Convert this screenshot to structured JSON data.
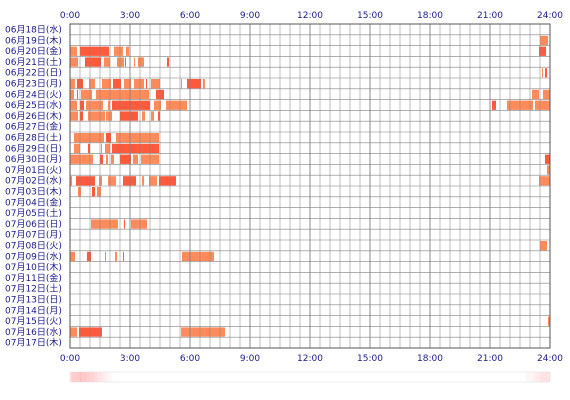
{
  "chart_data": {
    "type": "heatmap",
    "title": "",
    "x_ticks": [
      "0:00",
      "3:00",
      "6:00",
      "9:00",
      "12:00",
      "15:00",
      "18:00",
      "21:00",
      "24:00"
    ],
    "x_range_hours": [
      0,
      24
    ],
    "grid": true,
    "colors": {
      "bar": "#ff8b5a",
      "bar_dark": "#ff5a3c",
      "grid": "#808080",
      "label": "#1a1a8c"
    },
    "rows": [
      {
        "label": "06月18日(水)",
        "segments": []
      },
      {
        "label": "06月19日(木)",
        "segments": [
          [
            23.5,
            23.9
          ]
        ]
      },
      {
        "label": "06月20日(金)",
        "segments": [
          [
            0.0,
            0.35
          ],
          [
            0.5,
            1.95
          ],
          [
            2.2,
            2.65
          ],
          [
            2.8,
            2.95
          ],
          [
            23.45,
            23.8
          ]
        ]
      },
      {
        "label": "06月21日(土)",
        "segments": [
          [
            0.0,
            0.4
          ],
          [
            0.75,
            1.55
          ],
          [
            1.7,
            2.0
          ],
          [
            2.35,
            2.7
          ],
          [
            2.75,
            2.8
          ],
          [
            3.2,
            3.25
          ],
          [
            3.4,
            3.7
          ],
          [
            4.85,
            4.95
          ]
        ]
      },
      {
        "label": "06月22日(日)",
        "segments": [
          [
            23.6,
            23.65
          ],
          [
            23.75,
            23.85
          ]
        ]
      },
      {
        "label": "06月23日(月)",
        "segments": [
          [
            0.0,
            0.25
          ],
          [
            0.35,
            0.65
          ],
          [
            0.95,
            1.25
          ],
          [
            1.6,
            2.05
          ],
          [
            2.15,
            2.55
          ],
          [
            2.7,
            3.05
          ],
          [
            3.2,
            3.7
          ],
          [
            3.8,
            3.85
          ],
          [
            4.05,
            4.5
          ],
          [
            5.55,
            5.6
          ],
          [
            5.85,
            6.55
          ],
          [
            6.65,
            6.75
          ]
        ]
      },
      {
        "label": "06月24日(火)",
        "segments": [
          [
            0.0,
            0.2
          ],
          [
            0.35,
            0.4
          ],
          [
            0.55,
            1.1
          ],
          [
            1.3,
            3.95
          ],
          [
            4.3,
            4.7
          ],
          [
            23.1,
            23.45
          ],
          [
            23.65,
            24.0
          ]
        ]
      },
      {
        "label": "06月25日(水)",
        "segments": [
          [
            0.0,
            0.35
          ],
          [
            0.5,
            0.7
          ],
          [
            0.8,
            1.65
          ],
          [
            1.9,
            2.0
          ],
          [
            2.1,
            4.0
          ],
          [
            4.2,
            4.55
          ],
          [
            4.8,
            5.85
          ],
          [
            21.1,
            21.3
          ],
          [
            21.85,
            23.15
          ],
          [
            23.25,
            24.0
          ]
        ]
      },
      {
        "label": "06月26日(木)",
        "segments": [
          [
            0.0,
            0.4
          ],
          [
            0.5,
            0.65
          ],
          [
            0.9,
            1.75
          ],
          [
            1.8,
            2.1
          ],
          [
            2.5,
            3.4
          ],
          [
            3.6,
            3.75
          ],
          [
            4.05,
            4.2
          ],
          [
            4.4,
            4.5
          ]
        ]
      },
      {
        "label": "06月27日(金)",
        "segments": []
      },
      {
        "label": "06月28日(土)",
        "segments": [
          [
            0.2,
            1.7
          ],
          [
            1.8,
            2.05
          ],
          [
            2.3,
            4.45
          ]
        ]
      },
      {
        "label": "06月29日(日)",
        "segments": [
          [
            0.2,
            0.5
          ],
          [
            0.9,
            1.0
          ],
          [
            1.55,
            1.6
          ],
          [
            1.75,
            2.0
          ],
          [
            2.1,
            4.45
          ]
        ]
      },
      {
        "label": "06月30日(月)",
        "segments": [
          [
            0.0,
            1.15
          ],
          [
            1.5,
            1.65
          ],
          [
            1.8,
            1.9
          ],
          [
            2.05,
            2.2
          ],
          [
            2.5,
            3.05
          ],
          [
            3.15,
            3.4
          ],
          [
            3.55,
            4.45
          ],
          [
            23.75,
            24.0
          ]
        ]
      },
      {
        "label": "07月01日(火)",
        "segments": [
          [
            23.85,
            24.0
          ]
        ]
      },
      {
        "label": "07月02日(水)",
        "segments": [
          [
            0.0,
            0.1
          ],
          [
            0.3,
            1.25
          ],
          [
            1.45,
            1.6
          ],
          [
            1.9,
            2.3
          ],
          [
            2.65,
            3.3
          ],
          [
            3.6,
            3.7
          ],
          [
            3.95,
            4.35
          ],
          [
            4.45,
            5.3
          ],
          [
            23.45,
            24.0
          ]
        ]
      },
      {
        "label": "07月03日(木)",
        "segments": [
          [
            0.4,
            0.55
          ],
          [
            1.1,
            1.25
          ],
          [
            1.35,
            1.55
          ]
        ]
      },
      {
        "label": "07月04日(金)",
        "segments": []
      },
      {
        "label": "07月05日(土)",
        "segments": []
      },
      {
        "label": "07月06日(日)",
        "segments": [
          [
            1.05,
            2.4
          ],
          [
            2.7,
            2.75
          ],
          [
            3.05,
            3.85
          ]
        ]
      },
      {
        "label": "07月07日(月)",
        "segments": []
      },
      {
        "label": "07月08日(火)",
        "segments": [
          [
            23.5,
            23.85
          ]
        ]
      },
      {
        "label": "07月09日(水)",
        "segments": [
          [
            0.0,
            0.25
          ],
          [
            0.85,
            1.05
          ],
          [
            1.75,
            1.8
          ],
          [
            2.25,
            2.35
          ],
          [
            2.65,
            2.7
          ],
          [
            5.6,
            7.2
          ]
        ]
      },
      {
        "label": "07月10日(木)",
        "segments": []
      },
      {
        "label": "07月11日(金)",
        "segments": []
      },
      {
        "label": "07月12日(土)",
        "segments": []
      },
      {
        "label": "07月13日(日)",
        "segments": []
      },
      {
        "label": "07月14日(月)",
        "segments": []
      },
      {
        "label": "07月15日(火)",
        "segments": [
          [
            23.9,
            24.0
          ]
        ]
      },
      {
        "label": "07月16日(水)",
        "segments": [
          [
            0.0,
            0.35
          ],
          [
            0.45,
            1.6
          ],
          [
            5.55,
            7.75
          ]
        ]
      },
      {
        "label": "07月17日(木)",
        "segments": []
      }
    ],
    "summary_bar": {
      "description_levels": [
        0.2,
        0.3,
        0.35,
        0.3,
        0.35,
        0.3,
        0.35,
        0.4,
        0.35,
        0.45,
        0.4,
        0.3,
        0.35,
        0.4,
        0.35,
        0.3,
        0.35,
        0.3,
        0.3,
        0.25,
        0.3,
        0.25,
        0.2,
        0.25,
        0.2,
        0.15,
        0.2,
        0.15,
        0.15,
        0.12,
        0.1,
        0.12,
        0.1,
        0.08,
        0.06,
        0.04,
        0.04,
        0.03,
        0.02,
        0.02,
        0.01,
        0.01,
        0.01,
        0.0,
        0.0,
        0.0,
        0.0,
        0.0,
        0.0,
        0.0,
        0.0,
        0.0,
        0.0,
        0.0,
        0.0,
        0.0,
        0.0,
        0.0,
        0.0,
        0.0,
        0.0,
        0.0,
        0.0,
        0.0,
        0.0,
        0.0,
        0.0,
        0.0,
        0.0,
        0.0,
        0.0,
        0.0,
        0.0,
        0.0,
        0.0,
        0.0,
        0.0,
        0.0,
        0.0,
        0.0,
        0.0,
        0.0,
        0.0,
        0.0,
        0.0,
        0.0,
        0.0,
        0.0,
        0.0,
        0.0,
        0.0,
        0.0,
        0.0,
        0.0,
        0.0,
        0.0,
        0.0,
        0.0,
        0.0,
        0.0,
        0.0,
        0.0,
        0.0,
        0.0,
        0.0,
        0.0,
        0.0,
        0.0,
        0.0,
        0.0,
        0.0,
        0.0,
        0.0,
        0.0,
        0.0,
        0.0,
        0.0,
        0.0,
        0.0,
        0.0,
        0.0,
        0.0,
        0.0,
        0.0,
        0.0,
        0.0,
        0.0,
        0.0,
        0.0,
        0.0,
        0.0,
        0.0,
        0.0,
        0.0,
        0.0,
        0.0,
        0.0,
        0.0,
        0.0,
        0.0,
        0.0,
        0.0,
        0.0,
        0.0,
        0.0,
        0.0,
        0.0,
        0.0,
        0.0,
        0.0,
        0.0,
        0.0,
        0.0,
        0.0,
        0.0,
        0.0,
        0.0,
        0.0,
        0.0,
        0.0,
        0.0,
        0.0,
        0.0,
        0.0,
        0.0,
        0.0,
        0.0,
        0.0,
        0.0,
        0.0,
        0.0,
        0.0,
        0.0,
        0.0,
        0.0,
        0.0,
        0.0,
        0.0,
        0.0,
        0.0,
        0.0,
        0.0,
        0.0,
        0.0,
        0.0,
        0.0,
        0.0,
        0.0,
        0.0,
        0.0,
        0.0,
        0.0,
        0.0,
        0.0,
        0.0,
        0.0,
        0.0,
        0.0,
        0.0,
        0.0,
        0.0,
        0.0,
        0.0,
        0.0,
        0.0,
        0.0,
        0.0,
        0.0,
        0.0,
        0.0,
        0.0,
        0.0,
        0.0,
        0.0,
        0.0,
        0.0,
        0.0,
        0.0,
        0.0,
        0.0,
        0.0,
        0.0,
        0.0,
        0.0,
        0.0,
        0.0,
        0.0,
        0.0,
        0.0,
        0.0,
        0.0,
        0.0,
        0.0,
        0.0,
        0.0,
        0.0,
        0.0,
        0.0,
        0.0,
        0.0,
        0.0,
        0.0,
        0.0,
        0.0,
        0.0,
        0.0,
        0.0,
        0.0,
        0.0,
        0.0,
        0.0,
        0.0,
        0.0,
        0.0,
        0.0,
        0.0,
        0.0,
        0.0,
        0.0,
        0.0,
        0.0,
        0.0,
        0.0,
        0.0,
        0.0,
        0.0,
        0.0,
        0.0,
        0.0,
        0.0,
        0.0,
        0.0,
        0.0,
        0.0,
        0.0,
        0.0,
        0.0,
        0.0,
        0.0,
        0.0,
        0.0,
        0.0,
        0.0,
        0.0,
        0.0,
        0.0,
        0.0,
        0.0,
        0.0,
        0.0,
        0.0,
        0.0,
        0.0,
        0.0,
        0.0,
        0.0,
        0.0,
        0.0,
        0.0,
        0.0,
        0.0,
        0.0,
        0.0,
        0.0,
        0.0,
        0.0,
        0.0,
        0.0,
        0.0,
        0.0,
        0.0,
        0.0,
        0.0,
        0.0,
        0.0,
        0.0,
        0.0,
        0.0,
        0.0,
        0.0,
        0.0,
        0.0,
        0.0,
        0.0,
        0.0,
        0.0,
        0.0,
        0.0,
        0.0,
        0.0,
        0.0,
        0.0,
        0.0,
        0.0,
        0.0,
        0.0,
        0.0,
        0.0,
        0.0,
        0.0,
        0.0,
        0.0,
        0.0,
        0.0,
        0.0,
        0.0,
        0.0,
        0.0,
        0.0,
        0.0,
        0.0,
        0.0,
        0.0,
        0.0,
        0.0,
        0.0,
        0.0,
        0.0,
        0.0,
        0.0,
        0.0,
        0.0,
        0.0,
        0.0,
        0.0,
        0.0,
        0.0,
        0.0,
        0.0,
        0.0,
        0.0,
        0.0,
        0.0,
        0.0,
        0.0,
        0.0,
        0.0,
        0.0,
        0.0,
        0.0,
        0.0,
        0.0,
        0.0,
        0.0,
        0.0,
        0.0,
        0.0,
        0.0,
        0.0,
        0.0,
        0.0,
        0.0,
        0.0,
        0.0,
        0.0,
        0.0,
        0.0,
        0.0,
        0.0,
        0.0,
        0.0,
        0.0,
        0.0,
        0.0,
        0.0,
        0.0,
        0.0,
        0.0,
        0.0,
        0.05,
        0.08,
        0.06,
        0.05,
        0.04,
        0.06,
        0.08,
        0.06,
        0.1,
        0.12,
        0.15,
        0.12,
        0.15,
        0.18,
        0.15,
        0.2,
        0.18,
        0.15,
        0.2,
        0.18,
        0.15,
        0.2
      ],
      "color": "#ff8080"
    }
  }
}
